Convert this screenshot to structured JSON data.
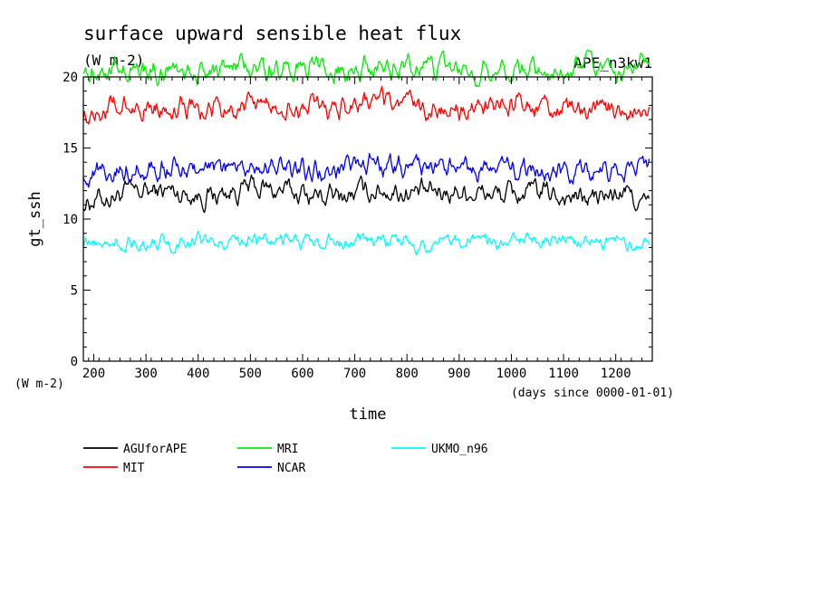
{
  "chart_data": {
    "type": "line",
    "title": "surface upward sensible heat flux",
    "subtitle": "(W m-2)",
    "tag": "APE_n3kw1",
    "xlabel": "time",
    "xunit": "(days since 0000-01-01)",
    "ylabel": "gt_ssh",
    "yunit": "(W m-2)",
    "xlim": [
      180,
      1270
    ],
    "ylim": [
      0,
      20
    ],
    "xticks": [
      200,
      300,
      400,
      500,
      600,
      700,
      800,
      900,
      1000,
      1100,
      1200
    ],
    "yticks": [
      0,
      5,
      10,
      15,
      20
    ],
    "grid": false,
    "legend_position": "bottom",
    "series": [
      {
        "name": "AGUforAPE",
        "color": "#000000",
        "x": [
          180,
          260,
          340,
          420,
          500,
          580,
          660,
          740,
          820,
          900,
          980,
          1060,
          1140,
          1220,
          1265
        ],
        "values": [
          11.2,
          11.8,
          12.0,
          11.6,
          12.2,
          11.9,
          11.5,
          12.1,
          11.8,
          12.0,
          11.7,
          11.9,
          11.4,
          11.8,
          10.8
        ]
      },
      {
        "name": "MIT",
        "color": "#ff0000",
        "x": [
          180,
          260,
          340,
          420,
          500,
          580,
          660,
          740,
          820,
          900,
          980,
          1060,
          1140,
          1220,
          1265
        ],
        "values": [
          17.5,
          17.9,
          18.0,
          17.6,
          18.1,
          17.8,
          17.7,
          18.2,
          17.9,
          17.6,
          18.0,
          17.8,
          17.5,
          17.9,
          17.2
        ]
      },
      {
        "name": "MRI",
        "color": "#00ee00",
        "x": [
          180,
          260,
          340,
          420,
          500,
          580,
          660,
          740,
          820,
          900,
          980,
          1060,
          1140,
          1220,
          1265
        ],
        "values": [
          20.6,
          20.4,
          20.5,
          20.3,
          20.8,
          20.6,
          20.4,
          20.7,
          20.9,
          20.5,
          20.6,
          20.4,
          20.8,
          20.5,
          20.6
        ]
      },
      {
        "name": "NCAR",
        "color": "#0000ff",
        "x": [
          180,
          260,
          340,
          420,
          500,
          580,
          660,
          740,
          820,
          900,
          980,
          1060,
          1140,
          1220,
          1265
        ],
        "values": [
          13.2,
          13.5,
          13.6,
          13.4,
          13.7,
          13.5,
          13.3,
          13.8,
          13.6,
          13.4,
          13.5,
          13.3,
          13.2,
          13.4,
          14.0
        ]
      },
      {
        "name": "UKMO_n96",
        "color": "#00ffff",
        "x": [
          180,
          260,
          340,
          420,
          500,
          580,
          660,
          740,
          820,
          900,
          980,
          1060,
          1140,
          1220,
          1265
        ],
        "values": [
          8.2,
          8.4,
          8.3,
          8.5,
          8.6,
          8.4,
          8.3,
          8.6,
          8.2,
          8.5,
          8.4,
          8.6,
          8.3,
          8.4,
          8.1
        ]
      }
    ]
  }
}
